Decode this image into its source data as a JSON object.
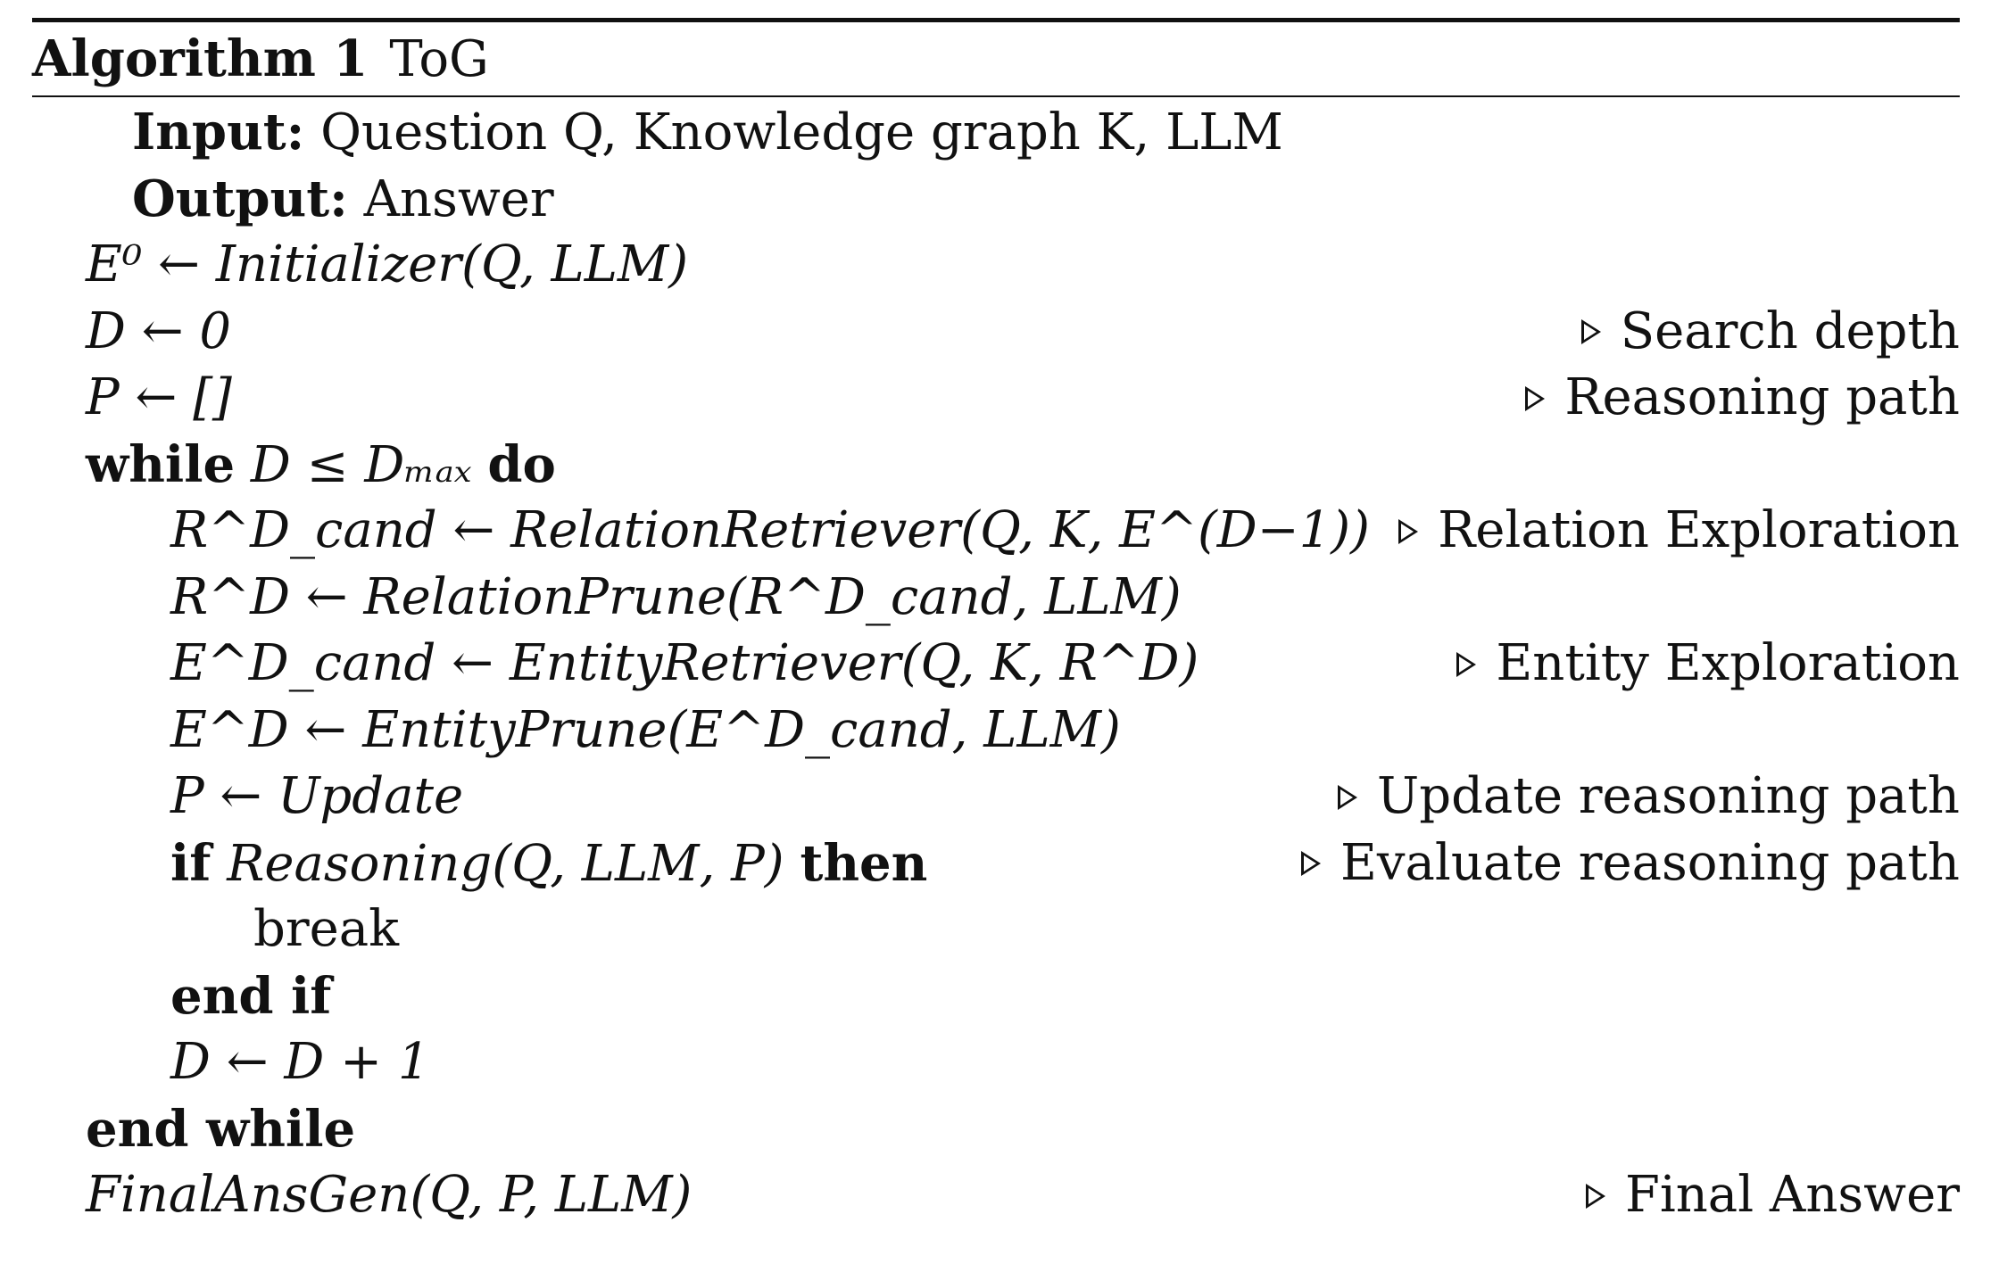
{
  "algorithm": {
    "label": "Algorithm 1",
    "name": "ToG"
  },
  "io": {
    "input_label": "Input:",
    "input_text": "Question Q, Knowledge graph K, LLM",
    "output_label": "Output:",
    "output_text": "Answer"
  },
  "lines": {
    "l1": "E⁰ ← Initializer(Q, LLM)",
    "l2": "D ← 0",
    "l2_comment": "Search depth",
    "l3": "P ← []",
    "l3_comment": "Reasoning path",
    "l4_kw": "while",
    "l4_cond": "D ≤ Dₘₐₓ",
    "l4_kw2": "do",
    "l5": "R^D_cand ← RelationRetriever(Q, K, E^(D−1))",
    "l5_comment": "Relation Exploration",
    "l6": "R^D ← RelationPrune(R^D_cand, LLM)",
    "l7": "E^D_cand ← EntityRetriever(Q, K, R^D)",
    "l7_comment": "Entity Exploration",
    "l8": "E^D ← EntityPrune(E^D_cand, LLM)",
    "l9": "P ← Update",
    "l9_comment": "Update reasoning path",
    "l10_kw": "if",
    "l10_cond": "Reasoning(Q, LLM, P)",
    "l10_kw2": "then",
    "l10_comment": "Evaluate reasoning path",
    "l11": "break",
    "l12": "end if",
    "l13": "D ← D + 1",
    "l14": "end while",
    "l15": "FinalAnsGen(Q, P, LLM)",
    "l15_comment": "Final Answer"
  }
}
